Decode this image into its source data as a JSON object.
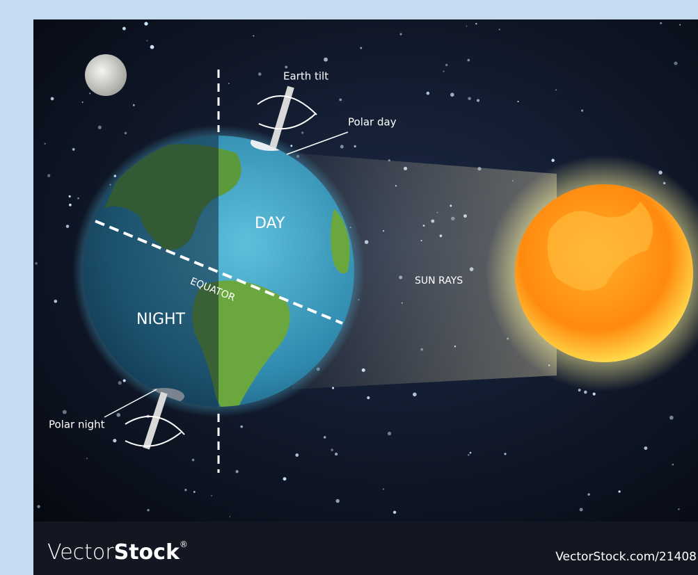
{
  "labels": {
    "earth_tilt": "Earth tilt",
    "polar_day": "Polar day",
    "day": "DAY",
    "equator": "EQUATOR",
    "night": "NIGHT",
    "sun_rays": "SUN RAYS",
    "polar_night": "Polar night"
  },
  "footer": {
    "brand_light": "Vector",
    "brand_bold": "Stock",
    "registered": "®",
    "url": "VectorStock.com/21408"
  }
}
